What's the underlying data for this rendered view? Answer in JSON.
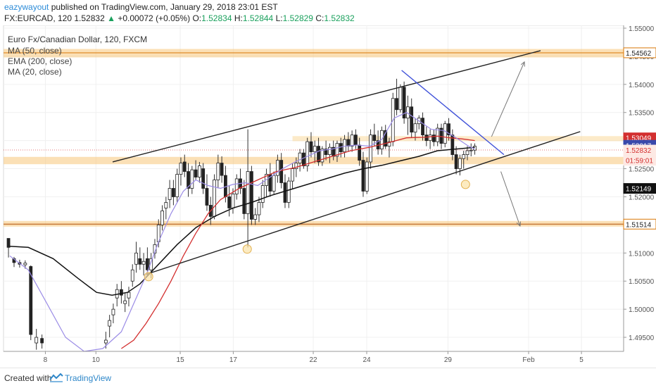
{
  "header": {
    "author": "eazywayout",
    "published": "published on TradingView.com, January 29, 2018 23:01 EST",
    "symbol": "FX:EURCAD, 120",
    "last": "1.52832",
    "change": "+0.00072 (+0.05%)",
    "o_label": "O:",
    "o": "1.52834",
    "h_label": "H:",
    "h": "1.52844",
    "l_label": "L:",
    "l": "1.52829",
    "c_label": "C:",
    "c": "1.52832"
  },
  "footer": {
    "created": "Created with",
    "brand": "TradingView"
  },
  "chart_data": {
    "type": "candlestick",
    "title": "Euro Fx/Canadian Dollar, 120, FXCM",
    "indicators": [
      "MA (50, close)",
      "EMA (200, close)",
      "MA (20, close)"
    ],
    "ylim": [
      1.4925,
      1.5505
    ],
    "y_ticks": [
      "1.55000",
      "1.54500",
      "1.54000",
      "1.53500",
      "1.53000",
      "1.52500",
      "1.52000",
      "1.51500",
      "1.51000",
      "1.50500",
      "1.50000",
      "1.49500"
    ],
    "x_ticks": [
      {
        "label": "8",
        "pos": 0.0675
      },
      {
        "label": "10",
        "pos": 0.149
      },
      {
        "label": "15",
        "pos": 0.285
      },
      {
        "label": "17",
        "pos": 0.3705
      },
      {
        "label": "22",
        "pos": 0.4995
      },
      {
        "label": "24",
        "pos": 0.5857
      },
      {
        "label": "29",
        "pos": 0.7167
      },
      {
        "label": "Feb",
        "pos": 0.8468
      },
      {
        "label": "5",
        "pos": 0.932
      }
    ],
    "price_labels": [
      {
        "value": 1.54562,
        "text": "1.54562",
        "color": "#222222",
        "bg": "#ffffff"
      },
      {
        "value": 1.53049,
        "text": "1.53049",
        "color": "#ffffff",
        "bg": "#d32f2f"
      },
      {
        "value": 1.52917,
        "text": "1.52917",
        "color": "#ffffff",
        "bg": "#3949ab"
      },
      {
        "value": 1.52832,
        "text": "1.52832",
        "color": "#d32f2f",
        "bg": "#fde9e4"
      },
      {
        "value": 1.5265,
        "text": "01:59:01",
        "color": "#d32f2f",
        "bg": "#fde9e4"
      },
      {
        "value": 1.52149,
        "text": "1.52149",
        "color": "#ffffff",
        "bg": "#111111"
      },
      {
        "value": 1.51514,
        "text": "1.51514",
        "color": "#222222",
        "bg": "#ffffff"
      }
    ],
    "zones": [
      {
        "from": 1.5448,
        "to": 1.5463,
        "x0": 0.0,
        "x1": 1.0,
        "color": "#f7c77a"
      },
      {
        "from": 1.5299,
        "to": 1.5308,
        "x0": 0.466,
        "x1": 1.0,
        "color": "#f9d89c"
      },
      {
        "from": 1.5258,
        "to": 1.5271,
        "x0": 0.0,
        "x1": 1.0,
        "color": "#f7c77a"
      },
      {
        "from": 1.5147,
        "to": 1.5157,
        "x0": 0.0,
        "x1": 1.0,
        "color": "#f7c77a"
      }
    ],
    "lines": [
      {
        "x1": 0.176,
        "y1": 1.5262,
        "x2": 0.866,
        "y2": 1.546,
        "color": "#222222"
      },
      {
        "x1": 0.23,
        "y1": 1.5062,
        "x2": 0.93,
        "y2": 1.5316,
        "color": "#222222"
      },
      {
        "x1": 0.642,
        "y1": 1.5425,
        "x2": 0.807,
        "y2": 1.5275,
        "color": "#3f51d9"
      },
      {
        "x1": 0.787,
        "y1": 1.5307,
        "x2": 0.84,
        "y2": 1.544,
        "color": "#777777",
        "arrow": true
      },
      {
        "x1": 0.802,
        "y1": 1.5245,
        "x2": 0.833,
        "y2": 1.5148,
        "color": "#777777",
        "arrow": true
      }
    ],
    "markers": [
      {
        "x": 0.234,
        "y": 1.5058
      },
      {
        "x": 0.393,
        "y": 1.5107
      },
      {
        "x": 0.745,
        "y": 1.5222
      }
    ],
    "candles": [
      [
        0.008,
        1.5126,
        1.5124,
        1.5092,
        1.511
      ],
      [
        0.017,
        1.509,
        1.5093,
        1.5075,
        1.5083
      ],
      [
        0.026,
        1.5083,
        1.5088,
        1.5074,
        1.508
      ],
      [
        0.035,
        1.5079,
        1.5087,
        1.5072,
        1.5082
      ],
      [
        0.044,
        1.5076,
        1.5078,
        1.4945,
        1.4955
      ],
      [
        0.053,
        1.494,
        1.4965,
        1.4928,
        1.495
      ],
      [
        0.062,
        1.4948,
        1.4955,
        1.493,
        1.494
      ],
      [
        0.165,
        1.494,
        1.496,
        1.493,
        1.4945
      ],
      [
        0.171,
        1.497,
        1.499,
        1.495,
        1.498
      ],
      [
        0.177,
        1.499,
        1.501,
        1.4975,
        1.5
      ],
      [
        0.183,
        1.502,
        1.5045,
        1.5005,
        1.5035
      ],
      [
        0.19,
        1.5035,
        1.505,
        1.501,
        1.5025
      ],
      [
        0.196,
        1.501,
        1.503,
        1.4995,
        1.5015
      ],
      [
        0.202,
        1.502,
        1.504,
        1.5005,
        1.503
      ],
      [
        0.208,
        1.505,
        1.508,
        1.504,
        1.507
      ],
      [
        0.214,
        1.508,
        1.512,
        1.5065,
        1.51
      ],
      [
        0.22,
        1.509,
        1.511,
        1.507,
        1.508
      ],
      [
        0.226,
        1.508,
        1.51,
        1.506,
        1.5085
      ],
      [
        0.232,
        1.509,
        1.511,
        1.506,
        1.507
      ],
      [
        0.238,
        1.507,
        1.51,
        1.5055,
        1.509
      ],
      [
        0.244,
        1.51,
        1.5125,
        1.509,
        1.5115
      ],
      [
        0.25,
        1.512,
        1.516,
        1.511,
        1.515
      ],
      [
        0.256,
        1.515,
        1.5185,
        1.514,
        1.5175
      ],
      [
        0.262,
        1.518,
        1.52,
        1.516,
        1.519
      ],
      [
        0.268,
        1.5195,
        1.523,
        1.518,
        1.5215
      ],
      [
        0.274,
        1.5215,
        1.523,
        1.5185,
        1.52
      ],
      [
        0.28,
        1.52,
        1.525,
        1.519,
        1.524
      ],
      [
        0.286,
        1.524,
        1.527,
        1.522,
        1.526
      ],
      [
        0.292,
        1.5262,
        1.5275,
        1.5235,
        1.5245
      ],
      [
        0.298,
        1.5245,
        1.526,
        1.52,
        1.5215
      ],
      [
        0.304,
        1.5215,
        1.5255,
        1.5205,
        1.5248
      ],
      [
        0.31,
        1.5248,
        1.5265,
        1.523,
        1.5235
      ],
      [
        0.316,
        1.5235,
        1.5262,
        1.5225,
        1.5255
      ],
      [
        0.322,
        1.525,
        1.526,
        1.5205,
        1.5215
      ],
      [
        0.328,
        1.5215,
        1.524,
        1.5175,
        1.5185
      ],
      [
        0.334,
        1.5185,
        1.52,
        1.515,
        1.5165
      ],
      [
        0.34,
        1.5165,
        1.524,
        1.516,
        1.523
      ],
      [
        0.346,
        1.523,
        1.5275,
        1.5215,
        1.526
      ],
      [
        0.352,
        1.526,
        1.5272,
        1.5225,
        1.5238
      ],
      [
        0.358,
        1.5238,
        1.5255,
        1.519,
        1.52
      ],
      [
        0.364,
        1.52,
        1.522,
        1.5165,
        1.518
      ],
      [
        0.37,
        1.518,
        1.5215,
        1.517,
        1.5205
      ],
      [
        0.376,
        1.5205,
        1.524,
        1.5195,
        1.5232
      ],
      [
        0.382,
        1.5232,
        1.525,
        1.5205,
        1.5215
      ],
      [
        0.388,
        1.5215,
        1.523,
        1.516,
        1.517
      ],
      [
        0.394,
        1.517,
        1.532,
        1.511,
        1.5245
      ],
      [
        0.4,
        1.5245,
        1.5255,
        1.515,
        1.516
      ],
      [
        0.406,
        1.516,
        1.518,
        1.515,
        1.5168
      ],
      [
        0.412,
        1.5168,
        1.52,
        1.5155,
        1.519
      ],
      [
        0.418,
        1.519,
        1.523,
        1.518,
        1.522
      ],
      [
        0.424,
        1.522,
        1.525,
        1.52,
        1.524
      ],
      [
        0.43,
        1.524,
        1.526,
        1.52,
        1.521
      ],
      [
        0.436,
        1.521,
        1.5245,
        1.5205,
        1.5238
      ],
      [
        0.442,
        1.5238,
        1.5275,
        1.5225,
        1.5265
      ],
      [
        0.448,
        1.5265,
        1.5278,
        1.5215,
        1.5225
      ],
      [
        0.454,
        1.5225,
        1.524,
        1.518,
        1.519
      ],
      [
        0.46,
        1.519,
        1.5235,
        1.518,
        1.5228
      ],
      [
        0.466,
        1.5228,
        1.526,
        1.5215,
        1.525
      ],
      [
        0.472,
        1.525,
        1.527,
        1.5235,
        1.526
      ],
      [
        0.478,
        1.526,
        1.5285,
        1.5245,
        1.5278
      ],
      [
        0.484,
        1.5278,
        1.5285,
        1.525,
        1.5255
      ],
      [
        0.49,
        1.5255,
        1.5305,
        1.5245,
        1.5298
      ],
      [
        0.496,
        1.5298,
        1.5315,
        1.527,
        1.528
      ],
      [
        0.502,
        1.528,
        1.53,
        1.526,
        1.529
      ],
      [
        0.508,
        1.529,
        1.5305,
        1.5255,
        1.5262
      ],
      [
        0.514,
        1.5262,
        1.529,
        1.5255,
        1.5285
      ],
      [
        0.52,
        1.5285,
        1.53,
        1.5265,
        1.5275
      ],
      [
        0.526,
        1.5275,
        1.5295,
        1.526,
        1.5288
      ],
      [
        0.532,
        1.5288,
        1.53,
        1.5265,
        1.5272
      ],
      [
        0.538,
        1.5272,
        1.53,
        1.5262,
        1.5295
      ],
      [
        0.544,
        1.5295,
        1.5305,
        1.527,
        1.528
      ],
      [
        0.55,
        1.528,
        1.531,
        1.527,
        1.5302
      ],
      [
        0.556,
        1.5302,
        1.5315,
        1.528,
        1.529
      ],
      [
        0.562,
        1.529,
        1.5318,
        1.528,
        1.531
      ],
      [
        0.568,
        1.531,
        1.532,
        1.5285,
        1.5292
      ],
      [
        0.574,
        1.5292,
        1.5305,
        1.5255,
        1.5265
      ],
      [
        0.58,
        1.5265,
        1.528,
        1.52,
        1.521
      ],
      [
        0.586,
        1.521,
        1.527,
        1.5205,
        1.5262
      ],
      [
        0.592,
        1.5262,
        1.532,
        1.525,
        1.531
      ],
      [
        0.598,
        1.531,
        1.533,
        1.529,
        1.53
      ],
      [
        0.604,
        1.53,
        1.5318,
        1.5275,
        1.5285
      ],
      [
        0.61,
        1.5285,
        1.5325,
        1.5275,
        1.5318
      ],
      [
        0.616,
        1.5318,
        1.5328,
        1.5285,
        1.529
      ],
      [
        0.622,
        1.529,
        1.5305,
        1.527,
        1.5298
      ],
      [
        0.628,
        1.5298,
        1.5385,
        1.529,
        1.5375
      ],
      [
        0.634,
        1.5375,
        1.541,
        1.5345,
        1.5355
      ],
      [
        0.64,
        1.5355,
        1.54,
        1.535,
        1.5395
      ],
      [
        0.646,
        1.5395,
        1.5405,
        1.533,
        1.534
      ],
      [
        0.652,
        1.534,
        1.538,
        1.531,
        1.536
      ],
      [
        0.658,
        1.536,
        1.5375,
        1.5305,
        1.5315
      ],
      [
        0.664,
        1.5315,
        1.534,
        1.53,
        1.533
      ],
      [
        0.67,
        1.533,
        1.5345,
        1.532,
        1.534
      ],
      [
        0.676,
        1.534,
        1.535,
        1.53,
        1.531
      ],
      [
        0.682,
        1.531,
        1.5325,
        1.529,
        1.53
      ],
      [
        0.688,
        1.53,
        1.532,
        1.5285,
        1.531
      ],
      [
        0.694,
        1.531,
        1.532,
        1.529,
        1.5298
      ],
      [
        0.7,
        1.5298,
        1.533,
        1.529,
        1.5322
      ],
      [
        0.706,
        1.5322,
        1.533,
        1.5285,
        1.5295
      ],
      [
        0.712,
        1.5295,
        1.5335,
        1.5288,
        1.533
      ],
      [
        0.718,
        1.533,
        1.534,
        1.53,
        1.531
      ],
      [
        0.724,
        1.531,
        1.532,
        1.5265,
        1.5275
      ],
      [
        0.73,
        1.5275,
        1.529,
        1.524,
        1.525
      ],
      [
        0.736,
        1.525,
        1.5275,
        1.5238,
        1.5268
      ],
      [
        0.742,
        1.5268,
        1.5282,
        1.525,
        1.5275
      ],
      [
        0.748,
        1.5275,
        1.529,
        1.5265,
        1.5282
      ],
      [
        0.754,
        1.5282,
        1.5295,
        1.5272,
        1.5283
      ],
      [
        0.76,
        1.5283,
        1.5295,
        1.5275,
        1.529
      ]
    ],
    "ma50": [
      [
        0.01,
        1.5112
      ],
      [
        0.04,
        1.511
      ],
      [
        0.08,
        1.509
      ],
      [
        0.12,
        1.5055
      ],
      [
        0.15,
        1.503
      ],
      [
        0.175,
        1.5025
      ],
      [
        0.2,
        1.503
      ],
      [
        0.22,
        1.5045
      ],
      [
        0.25,
        1.508
      ],
      [
        0.28,
        1.5115
      ],
      [
        0.31,
        1.5145
      ],
      [
        0.34,
        1.5165
      ],
      [
        0.37,
        1.518
      ],
      [
        0.4,
        1.519
      ],
      [
        0.43,
        1.5202
      ],
      [
        0.46,
        1.5212
      ],
      [
        0.49,
        1.5222
      ],
      [
        0.52,
        1.5232
      ],
      [
        0.55,
        1.5242
      ],
      [
        0.58,
        1.525
      ],
      [
        0.61,
        1.5256
      ],
      [
        0.64,
        1.5264
      ],
      [
        0.67,
        1.5272
      ],
      [
        0.7,
        1.5282
      ],
      [
        0.73,
        1.5285
      ],
      [
        0.76,
        1.5288
      ]
    ],
    "ema200": [
      [
        0.19,
        1.493
      ],
      [
        0.21,
        1.4945
      ],
      [
        0.23,
        1.4975
      ],
      [
        0.25,
        1.501
      ],
      [
        0.27,
        1.505
      ],
      [
        0.29,
        1.5095
      ],
      [
        0.31,
        1.5135
      ],
      [
        0.33,
        1.517
      ],
      [
        0.35,
        1.5195
      ],
      [
        0.38,
        1.5215
      ],
      [
        0.41,
        1.523
      ],
      [
        0.44,
        1.5245
      ],
      [
        0.47,
        1.5252
      ],
      [
        0.5,
        1.5262
      ],
      [
        0.53,
        1.5272
      ],
      [
        0.56,
        1.5282
      ],
      [
        0.59,
        1.5288
      ],
      [
        0.62,
        1.5296
      ],
      [
        0.65,
        1.5305
      ],
      [
        0.68,
        1.5306
      ],
      [
        0.7,
        1.5308
      ],
      [
        0.72,
        1.5305
      ],
      [
        0.74,
        1.5303
      ],
      [
        0.76,
        1.53
      ]
    ],
    "ma20": [
      [
        0.01,
        1.5095
      ],
      [
        0.04,
        1.507
      ],
      [
        0.07,
        1.501
      ],
      [
        0.1,
        1.495
      ],
      [
        0.13,
        1.4925
      ],
      [
        0.16,
        1.493
      ],
      [
        0.19,
        1.496
      ],
      [
        0.21,
        1.501
      ],
      [
        0.23,
        1.506
      ],
      [
        0.25,
        1.512
      ],
      [
        0.27,
        1.517
      ],
      [
        0.29,
        1.521
      ],
      [
        0.31,
        1.523
      ],
      [
        0.33,
        1.522
      ],
      [
        0.35,
        1.5215
      ],
      [
        0.37,
        1.5222
      ],
      [
        0.39,
        1.5225
      ],
      [
        0.41,
        1.522
      ],
      [
        0.43,
        1.5235
      ],
      [
        0.45,
        1.525
      ],
      [
        0.47,
        1.5262
      ],
      [
        0.49,
        1.5272
      ],
      [
        0.51,
        1.5282
      ],
      [
        0.53,
        1.5285
      ],
      [
        0.55,
        1.529
      ],
      [
        0.57,
        1.5292
      ],
      [
        0.59,
        1.529
      ],
      [
        0.61,
        1.5302
      ],
      [
        0.63,
        1.534
      ],
      [
        0.65,
        1.535
      ],
      [
        0.67,
        1.5335
      ],
      [
        0.69,
        1.532
      ],
      [
        0.71,
        1.5318
      ],
      [
        0.73,
        1.5305
      ],
      [
        0.75,
        1.529
      ],
      [
        0.76,
        1.5285
      ]
    ]
  }
}
